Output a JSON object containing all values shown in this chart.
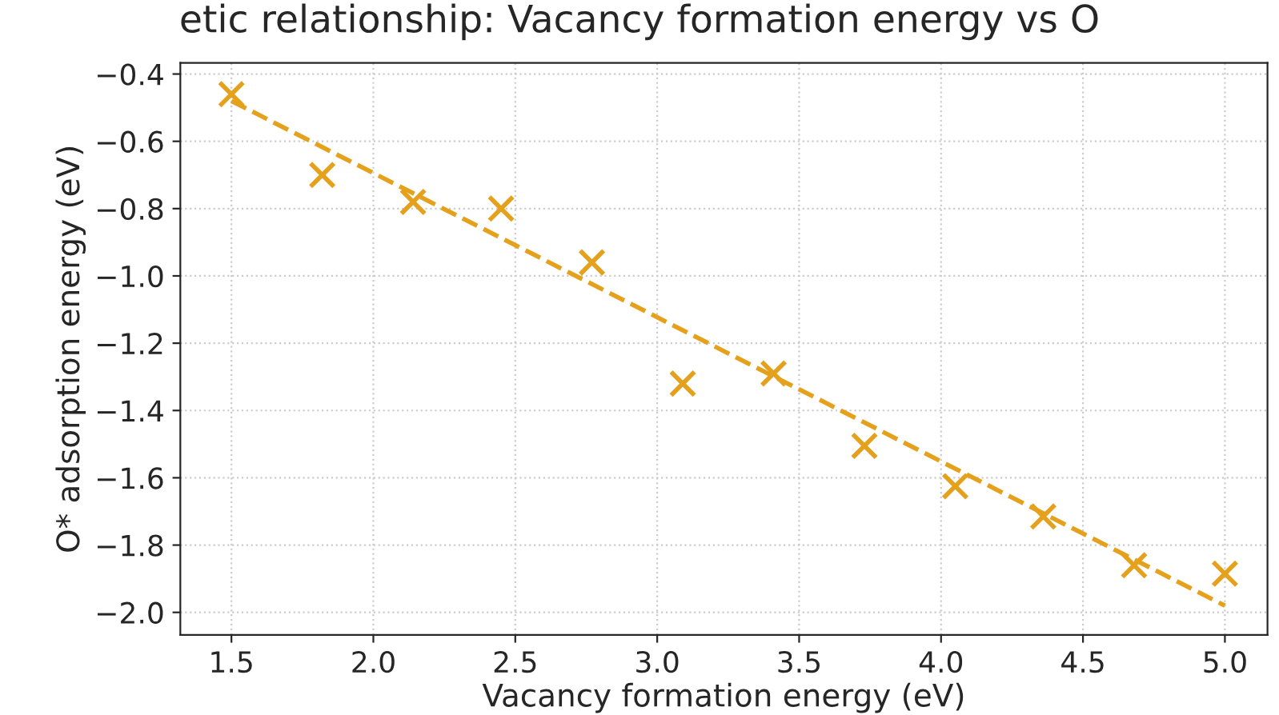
{
  "chart_data": {
    "type": "scatter",
    "title": "etic relationship: Vacancy formation energy vs O",
    "xlabel": "Vacancy formation energy (eV)",
    "ylabel": "O* adsorption energy (eV)",
    "x": [
      1.5,
      1.82,
      2.14,
      2.45,
      2.77,
      3.09,
      3.41,
      3.73,
      4.05,
      4.36,
      4.68,
      5.0
    ],
    "series": [
      {
        "color": "#e5a11c",
        "marker": "cross",
        "values": [
          -0.46,
          -0.7,
          -0.78,
          -0.8,
          -0.96,
          -1.32,
          -1.29,
          -1.505,
          -1.625,
          -1.715,
          -1.86,
          -1.885
        ]
      },
      {
        "type": "line",
        "color": "#e5a11c",
        "line_style": "dashed",
        "x": [
          1.5,
          5.0
        ],
        "values": [
          -0.48,
          -1.98
        ]
      }
    ],
    "xlim": [
      1.32,
      5.15
    ],
    "ylim": [
      -2.067,
      -0.367
    ],
    "xticks": [
      {
        "value": 1.5,
        "label": "1.5"
      },
      {
        "value": 2,
        "label": "2.0"
      },
      {
        "value": 2.5,
        "label": "2.5"
      },
      {
        "value": 3,
        "label": "3.0"
      },
      {
        "value": 3.5,
        "label": "3.5"
      },
      {
        "value": 4,
        "label": "4.0"
      },
      {
        "value": 4.5,
        "label": "4.5"
      },
      {
        "value": 5,
        "label": "5.0"
      }
    ],
    "yticks": [
      {
        "value": -2.0,
        "label": "−2.0"
      },
      {
        "value": -1.8,
        "label": "−1.8"
      },
      {
        "value": -1.6,
        "label": "−1.6"
      },
      {
        "value": -1.4,
        "label": "−1.4"
      },
      {
        "value": -1.2,
        "label": "−1.2"
      },
      {
        "value": -1.0,
        "label": "−1.0"
      },
      {
        "value": -0.8,
        "label": "−0.8"
      },
      {
        "value": -0.6,
        "label": "−0.6"
      },
      {
        "value": -0.4,
        "label": "−0.4"
      }
    ],
    "grid": true
  }
}
